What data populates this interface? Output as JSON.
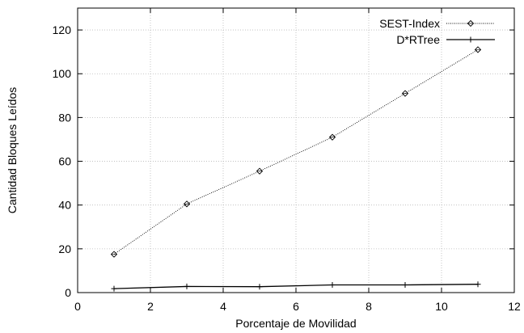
{
  "chart_data": {
    "type": "line",
    "xlabel": "Porcentaje de Movilidad",
    "ylabel": "Cantidad Bloques Leídos",
    "xlim": [
      0,
      12
    ],
    "ylim": [
      0,
      130
    ],
    "xticks": [
      0,
      2,
      4,
      6,
      8,
      10,
      12
    ],
    "yticks": [
      0,
      20,
      40,
      60,
      80,
      100,
      120
    ],
    "grid": true,
    "legend_position": "top-right",
    "series": [
      {
        "name": "SEST-Index",
        "style": "dotted",
        "marker": "diamond",
        "color": "#000000",
        "points": [
          {
            "x": 1,
            "y": 17.5
          },
          {
            "x": 3,
            "y": 40.5
          },
          {
            "x": 5,
            "y": 55.5
          },
          {
            "x": 7,
            "y": 71
          },
          {
            "x": 9,
            "y": 91
          },
          {
            "x": 11,
            "y": 111
          }
        ]
      },
      {
        "name": "D*RTree",
        "style": "solid",
        "marker": "plus",
        "color": "#000000",
        "points": [
          {
            "x": 1,
            "y": 1.8
          },
          {
            "x": 3,
            "y": 2.8
          },
          {
            "x": 5,
            "y": 2.7
          },
          {
            "x": 7,
            "y": 3.5
          },
          {
            "x": 9,
            "y": 3.5
          },
          {
            "x": 11,
            "y": 3.8
          }
        ]
      }
    ]
  }
}
